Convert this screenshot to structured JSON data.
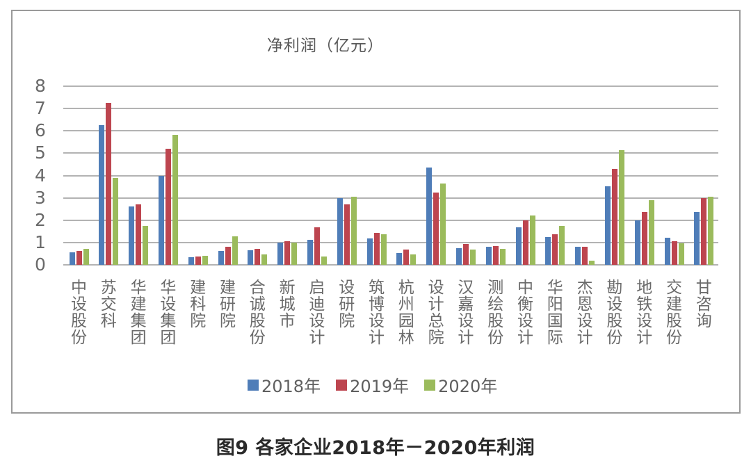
{
  "chart": {
    "unit_title": "净利润（亿元）",
    "caption": "图9   各家企业2018年－2020年利润",
    "colors": {
      "2018": "#4f7db8",
      "2019": "#bd454f",
      "2020": "#9bbb5c",
      "grid": "#b3b3b3",
      "border": "#9a9a9a"
    }
  },
  "legend": [
    {
      "label": "2018年",
      "color": "#4f7db8"
    },
    {
      "label": "2019年",
      "color": "#bd454f"
    },
    {
      "label": "2020年",
      "color": "#9bbb5c"
    }
  ],
  "chart_data": {
    "type": "bar",
    "title": "净利润（亿元）",
    "caption": "图9 各家企业2018年－2020年利润",
    "xlabel": "",
    "ylabel": "净利润（亿元）",
    "ylim": [
      0,
      8
    ],
    "yticks": [
      0,
      1,
      2,
      3,
      4,
      5,
      6,
      7,
      8
    ],
    "grid": true,
    "legend_position": "bottom",
    "categories": [
      "中设股份",
      "苏交科",
      "华建集团",
      "华设集团",
      "建科院",
      "建研院",
      "合诚股份",
      "新城市",
      "启迪设计",
      "设研院",
      "筑博设计",
      "杭州园林",
      "设计总院",
      "汉嘉设计",
      "测绘股份",
      "中衡设计",
      "华阳国际",
      "杰恩设计",
      "勘设股份",
      "地铁设计",
      "交建股份",
      "甘咨询"
    ],
    "series": [
      {
        "name": "2018年",
        "values": [
          0.55,
          6.25,
          2.63,
          3.98,
          0.35,
          0.63,
          0.65,
          1.0,
          1.12,
          3.0,
          1.17,
          0.52,
          4.37,
          0.75,
          0.8,
          1.67,
          1.25,
          0.82,
          3.52,
          2.0,
          1.2,
          2.37
        ]
      },
      {
        "name": "2019年",
        "values": [
          0.63,
          7.25,
          2.72,
          5.2,
          0.38,
          0.8,
          0.72,
          1.05,
          1.68,
          2.72,
          1.42,
          0.67,
          3.25,
          0.92,
          0.85,
          2.0,
          1.37,
          0.82,
          4.3,
          2.37,
          1.05,
          3.0
        ]
      },
      {
        "name": "2020年",
        "values": [
          0.72,
          3.88,
          1.73,
          5.82,
          0.42,
          1.28,
          0.48,
          1.0,
          0.38,
          3.05,
          1.38,
          0.48,
          3.65,
          0.7,
          0.72,
          2.2,
          1.73,
          0.2,
          5.15,
          2.88,
          0.95,
          3.05
        ]
      }
    ]
  }
}
